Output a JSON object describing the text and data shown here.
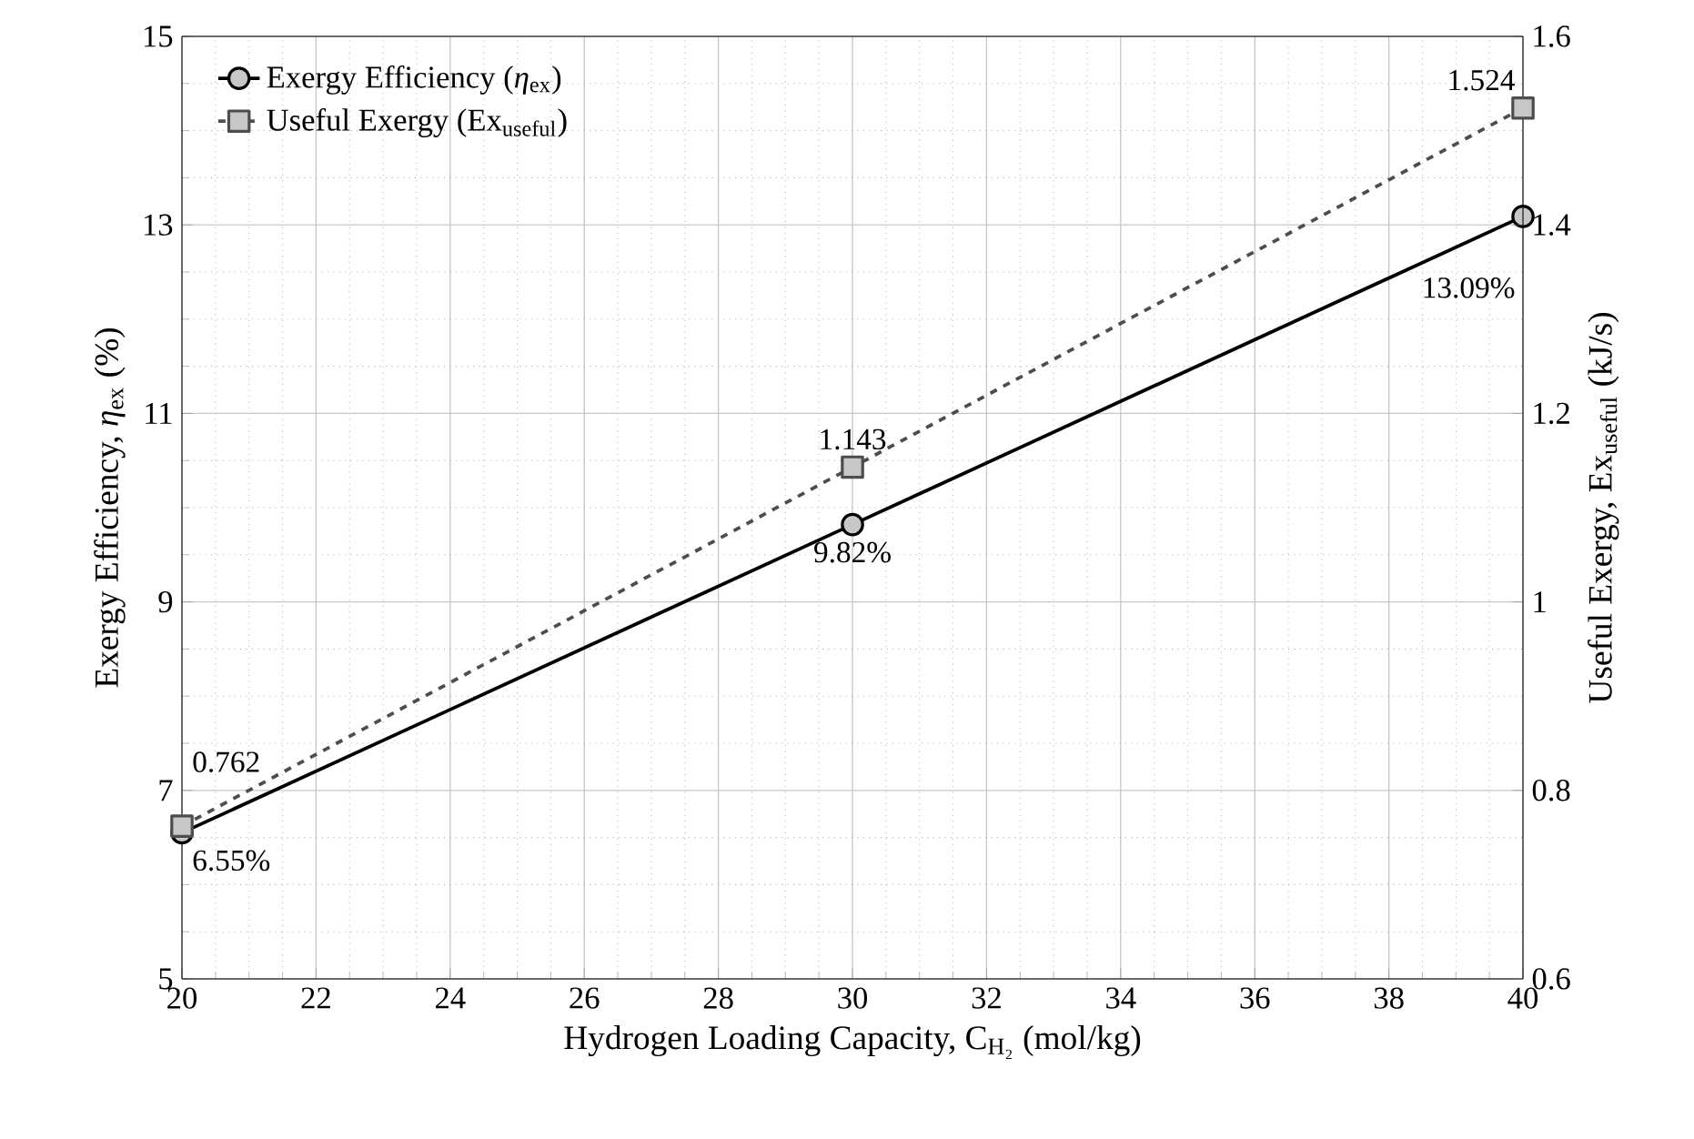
{
  "chart_data": {
    "type": "line",
    "xlabel": "Hydrogen Loading Capacity, C$_{H₂}$ (mol/kg)",
    "ylabel": "Exergy Efficiency, *η*$_{ex}$ (%)",
    "y2label": "Useful Exergy, Ex$_{useful}$ (kJ/s)",
    "x": [
      20,
      30,
      40
    ],
    "series": [
      {
        "name": "Exergy Efficiency (*η*$_{ex}$)",
        "color": "#000000",
        "values": [
          6.55,
          9.82,
          13.09
        ],
        "value_labels": [
          "6.55%",
          "9.82%",
          "13.09%"
        ],
        "marker": "circle",
        "line_style": "solid"
      },
      {
        "name": "Useful Exergy (Ex$_{useful}$)",
        "color": "#4d4d4d",
        "values": [
          0.762,
          1.143,
          1.524
        ],
        "value_labels": [
          "0.762",
          "1.143",
          "1.524"
        ],
        "marker": "square",
        "line_style": "dashed",
        "axis": "y2"
      }
    ],
    "xlim": [
      20,
      40
    ],
    "xticks": [
      20,
      22,
      24,
      26,
      28,
      30,
      32,
      34,
      36,
      38,
      40
    ],
    "ylim": [
      5,
      15
    ],
    "yticks": [
      5,
      7,
      9,
      11,
      13,
      15
    ],
    "y2lim": [
      0.6,
      1.6
    ],
    "y2ticks": [
      {
        "value": 0.6,
        "label": "0.6"
      },
      {
        "value": 0.8,
        "label": "0.8"
      },
      {
        "value": 1.0,
        "label": "1"
      },
      {
        "value": 1.2,
        "label": "1.2"
      },
      {
        "value": 1.4,
        "label": "1.4"
      },
      {
        "value": 1.6,
        "label": "1.6"
      }
    ],
    "grid": true,
    "legend": "top left"
  }
}
